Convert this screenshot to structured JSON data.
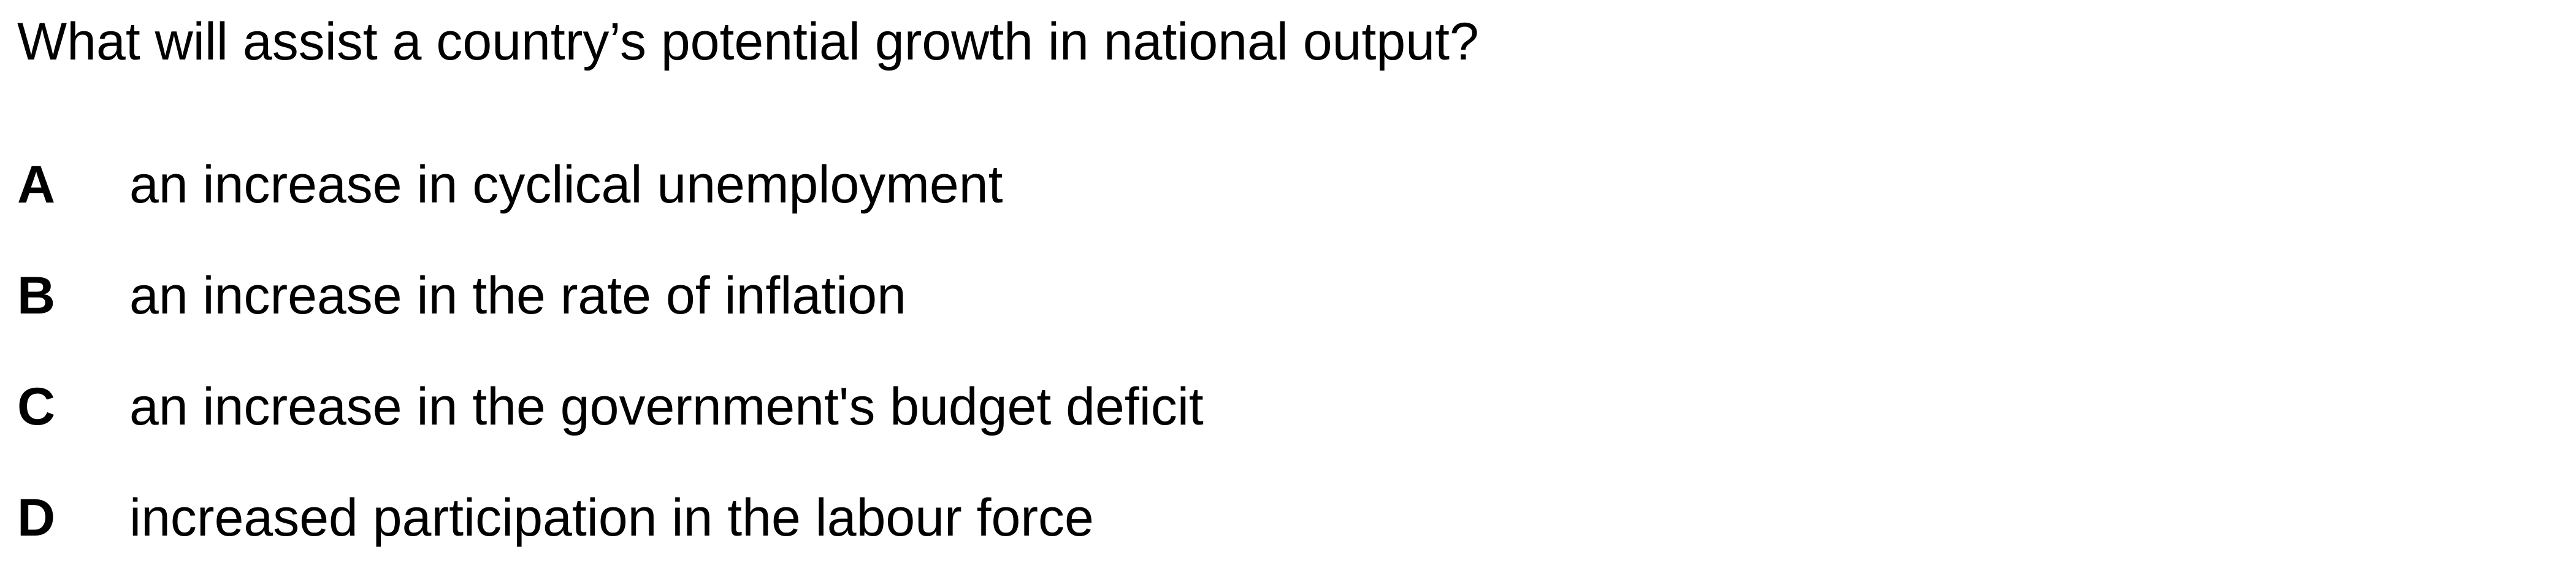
{
  "question": {
    "text": "What will assist a country’s potential growth in national output?"
  },
  "options": [
    {
      "letter": "A",
      "text": "an increase in cyclical unemployment"
    },
    {
      "letter": "B",
      "text": "an increase in the rate of inflation"
    },
    {
      "letter": "C",
      "text": "an increase in the government's budget deficit"
    },
    {
      "letter": "D",
      "text": "increased participation in the labour force"
    }
  ]
}
